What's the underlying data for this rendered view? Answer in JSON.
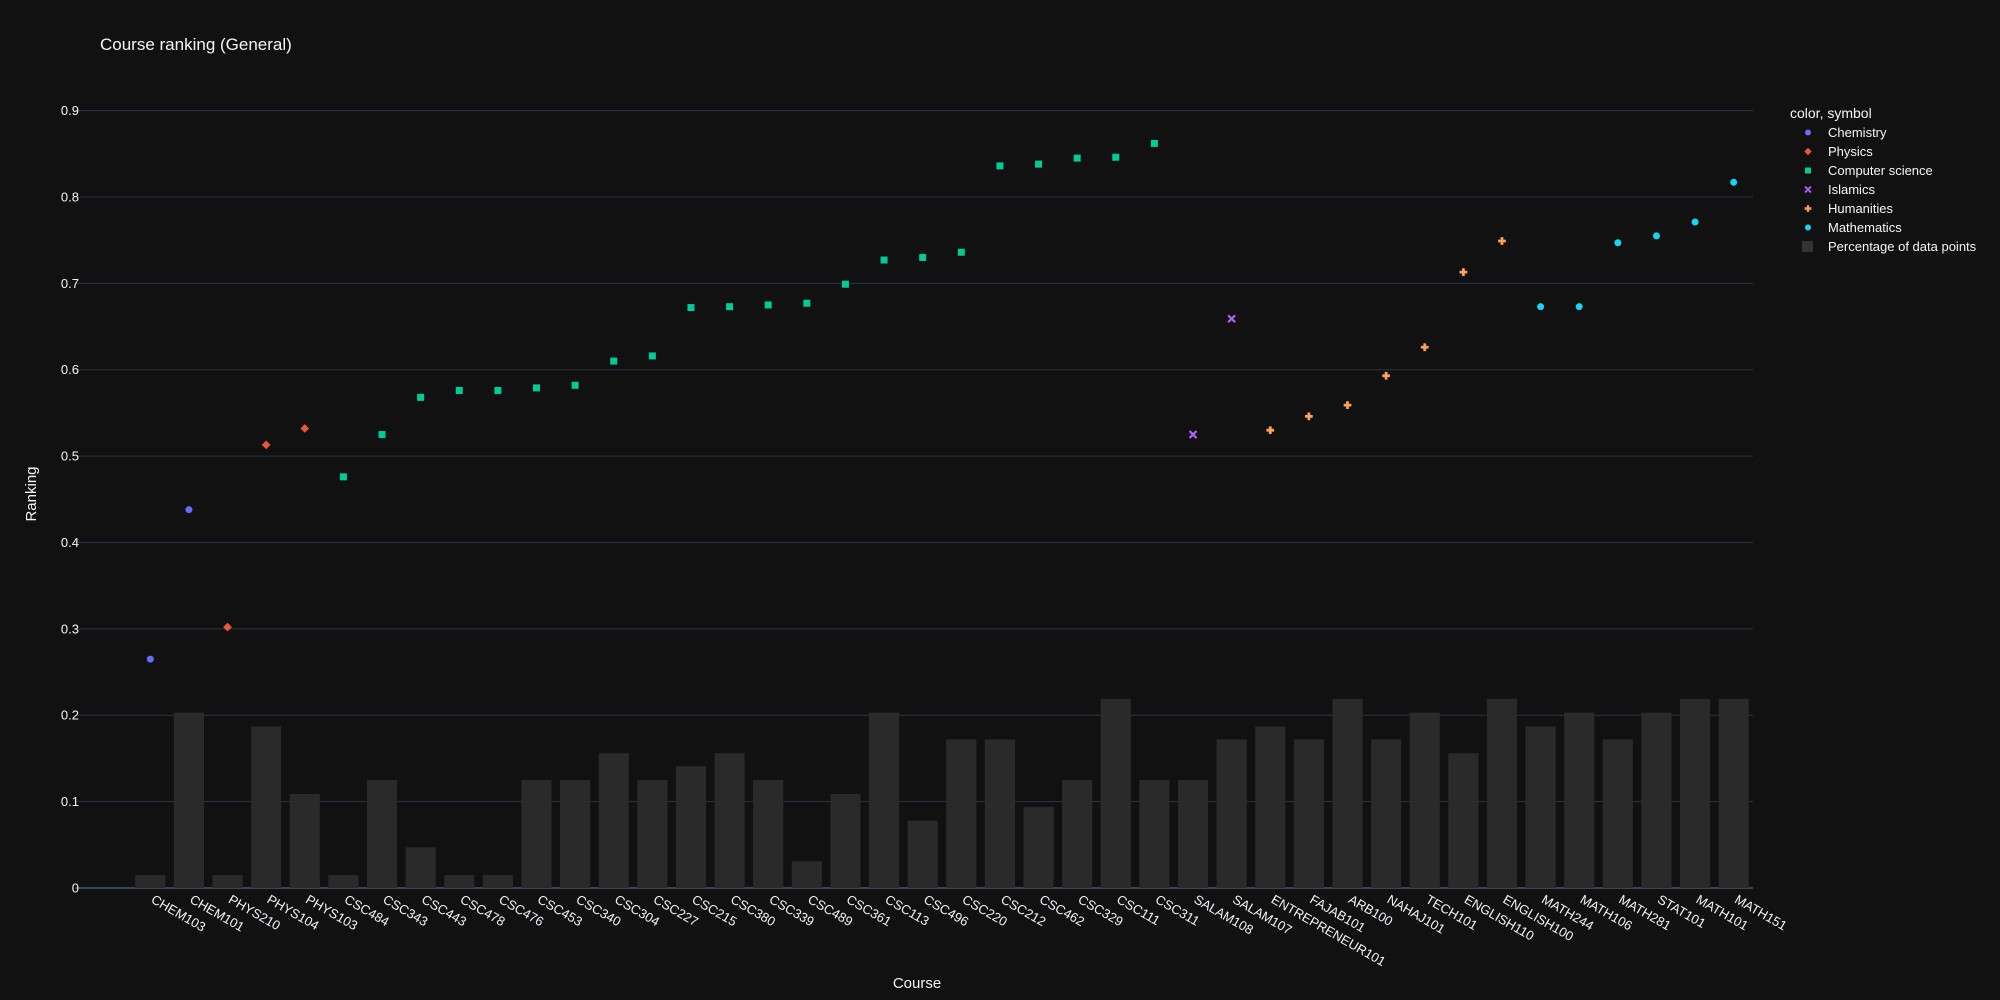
{
  "chart_data": {
    "type": "scatter",
    "title": "Course ranking (General)",
    "xlabel": "Course",
    "ylabel": "Ranking",
    "ylim": [
      0,
      0.9
    ],
    "yticks": [
      0,
      0.1,
      0.2,
      0.3,
      0.4,
      0.5,
      0.6,
      0.7,
      0.8,
      0.9
    ],
    "grid": true,
    "legend_title": "color, symbol",
    "legend_position": "top-right",
    "categories": [
      "CHEM103",
      "CHEM101",
      "PHYS210",
      "PHYS104",
      "PHYS103",
      "CSC484",
      "CSC343",
      "CSC443",
      "CSC478",
      "CSC476",
      "CSC453",
      "CSC340",
      "CSC304",
      "CSC227",
      "CSC215",
      "CSC380",
      "CSC339",
      "CSC489",
      "CSC361",
      "CSC113",
      "CSC496",
      "CSC220",
      "CSC212",
      "CSC462",
      "CSC329",
      "CSC111",
      "CSC311",
      "SALAM108",
      "SALAM107",
      "ENTREPRENEUR101",
      "FAJAB101",
      "ARB100",
      "NAHAJ101",
      "TECH101",
      "ENGLISH110",
      "ENGLISH100",
      "MATH244",
      "MATH106",
      "MATH281",
      "STAT101",
      "MATH101",
      "MATH151"
    ],
    "series": [
      {
        "name": "Chemistry",
        "symbol": "circle",
        "color": "#636efa",
        "points": [
          {
            "x": "CHEM103",
            "y": 0.265
          },
          {
            "x": "CHEM101",
            "y": 0.438
          }
        ]
      },
      {
        "name": "Physics",
        "symbol": "diamond",
        "color": "#EF553B",
        "points": [
          {
            "x": "PHYS210",
            "y": 0.302
          },
          {
            "x": "PHYS104",
            "y": 0.513
          },
          {
            "x": "PHYS103",
            "y": 0.532
          }
        ]
      },
      {
        "name": "Computer science",
        "symbol": "square",
        "color": "#00cc96",
        "points": [
          {
            "x": "CSC484",
            "y": 0.476
          },
          {
            "x": "CSC343",
            "y": 0.525
          },
          {
            "x": "CSC443",
            "y": 0.568
          },
          {
            "x": "CSC478",
            "y": 0.576
          },
          {
            "x": "CSC476",
            "y": 0.576
          },
          {
            "x": "CSC453",
            "y": 0.579
          },
          {
            "x": "CSC340",
            "y": 0.582
          },
          {
            "x": "CSC304",
            "y": 0.61
          },
          {
            "x": "CSC227",
            "y": 0.616
          },
          {
            "x": "CSC215",
            "y": 0.672
          },
          {
            "x": "CSC380",
            "y": 0.673
          },
          {
            "x": "CSC339",
            "y": 0.675
          },
          {
            "x": "CSC489",
            "y": 0.677
          },
          {
            "x": "CSC361",
            "y": 0.699
          },
          {
            "x": "CSC113",
            "y": 0.727
          },
          {
            "x": "CSC496",
            "y": 0.73
          },
          {
            "x": "CSC220",
            "y": 0.736
          },
          {
            "x": "CSC212",
            "y": 0.836
          },
          {
            "x": "CSC462",
            "y": 0.838
          },
          {
            "x": "CSC329",
            "y": 0.845
          },
          {
            "x": "CSC111",
            "y": 0.846
          },
          {
            "x": "CSC311",
            "y": 0.862
          }
        ]
      },
      {
        "name": "Islamics",
        "symbol": "x",
        "color": "#ab63fa",
        "points": [
          {
            "x": "SALAM108",
            "y": 0.525
          },
          {
            "x": "SALAM107",
            "y": 0.659
          }
        ]
      },
      {
        "name": "Humanities",
        "symbol": "cross",
        "color": "#FFA15A",
        "points": [
          {
            "x": "ENTREPRENEUR101",
            "y": 0.53
          },
          {
            "x": "FAJAB101",
            "y": 0.546
          },
          {
            "x": "ARB100",
            "y": 0.559
          },
          {
            "x": "NAHAJ101",
            "y": 0.593
          },
          {
            "x": "TECH101",
            "y": 0.626
          },
          {
            "x": "ENGLISH110",
            "y": 0.713
          },
          {
            "x": "ENGLISH100",
            "y": 0.749
          }
        ]
      },
      {
        "name": "Mathematics",
        "symbol": "circle",
        "color": "#19d3f3",
        "points": [
          {
            "x": "MATH244",
            "y": 0.673
          },
          {
            "x": "MATH106",
            "y": 0.673
          },
          {
            "x": "MATH281",
            "y": 0.747
          },
          {
            "x": "STAT101",
            "y": 0.755
          },
          {
            "x": "MATH101",
            "y": 0.771
          },
          {
            "x": "MATH151",
            "y": 0.817
          }
        ]
      }
    ],
    "bar_series": {
      "name": "Percentage of data points",
      "type": "bar",
      "color": "#2a2a2a",
      "values": [
        0.015,
        0.203,
        0.015,
        0.187,
        0.109,
        0.015,
        0.125,
        0.047,
        0.015,
        0.015,
        0.125,
        0.125,
        0.156,
        0.125,
        0.141,
        0.156,
        0.125,
        0.031,
        0.109,
        0.203,
        0.078,
        0.172,
        0.172,
        0.094,
        0.125,
        0.219,
        0.125,
        0.125,
        0.172,
        0.187,
        0.172,
        0.219,
        0.172,
        0.203,
        0.156,
        0.219,
        0.187,
        0.203,
        0.172,
        0.203,
        0.219,
        0.219
      ]
    }
  }
}
